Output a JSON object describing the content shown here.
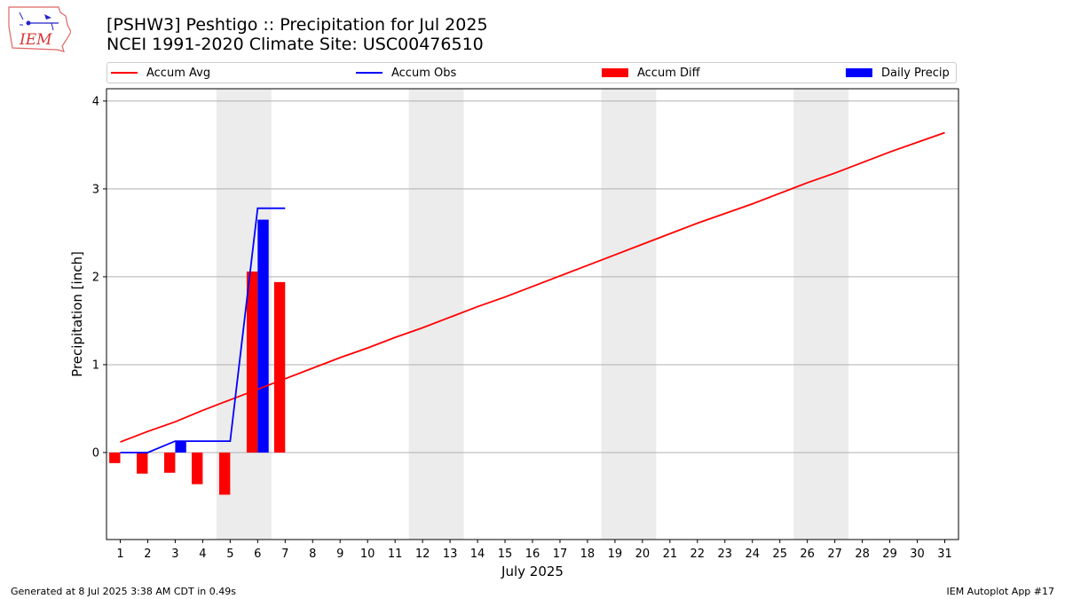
{
  "header": {
    "title_line1": "[PSHW3] Peshtigo :: Precipitation for Jul 2025",
    "title_line2": "NCEI 1991-2020 Climate Site: USC00476510",
    "logo_text": "IEM"
  },
  "legend": {
    "items": [
      {
        "label": "Accum Avg",
        "kind": "line",
        "color": "#ff0000"
      },
      {
        "label": "Accum Obs",
        "kind": "line",
        "color": "#0000ff"
      },
      {
        "label": "Accum Diff",
        "kind": "bar",
        "color": "#ff0000"
      },
      {
        "label": "Daily Precip",
        "kind": "bar",
        "color": "#0000ff"
      }
    ]
  },
  "footer": {
    "left": "Generated at 8 Jul 2025 3:38 AM CDT in 0.49s",
    "right": "IEM Autoplot App #17"
  },
  "chart_data": {
    "type": "bar",
    "title": "[PSHW3] Peshtigo :: Precipitation for Jul 2025",
    "xlabel": "July 2025",
    "ylabel": "Precipitation [inch]",
    "xlim": [
      0.5,
      31.5
    ],
    "ylim": [
      -0.99,
      4.14
    ],
    "x_ticks": [
      1,
      2,
      3,
      4,
      5,
      6,
      7,
      8,
      9,
      10,
      11,
      12,
      13,
      14,
      15,
      16,
      17,
      18,
      19,
      20,
      21,
      22,
      23,
      24,
      25,
      26,
      27,
      28,
      29,
      30,
      31
    ],
    "y_ticks": [
      0,
      1,
      2,
      3,
      4
    ],
    "grid": "horizontal",
    "weekend_shading": [
      [
        4.5,
        6.5
      ],
      [
        11.5,
        13.5
      ],
      [
        18.5,
        20.5
      ],
      [
        25.5,
        27.5
      ]
    ],
    "series": [
      {
        "name": "Accum Avg",
        "type": "line",
        "color": "#ff0000",
        "x": [
          1,
          2,
          3,
          4,
          5,
          6,
          7,
          8,
          9,
          10,
          11,
          12,
          13,
          14,
          15,
          16,
          17,
          18,
          19,
          20,
          21,
          22,
          23,
          24,
          25,
          26,
          27,
          28,
          29,
          30,
          31
        ],
        "values": [
          0.12,
          0.24,
          0.35,
          0.48,
          0.6,
          0.72,
          0.84,
          0.96,
          1.08,
          1.19,
          1.31,
          1.42,
          1.54,
          1.66,
          1.77,
          1.89,
          2.01,
          2.13,
          2.25,
          2.37,
          2.49,
          2.61,
          2.72,
          2.83,
          2.95,
          3.07,
          3.18,
          3.3,
          3.42,
          3.53,
          3.64
        ]
      },
      {
        "name": "Accum Obs",
        "type": "line",
        "color": "#0000ff",
        "x": [
          1,
          2,
          3,
          4,
          5,
          6,
          7
        ],
        "values": [
          0.0,
          0.0,
          0.13,
          0.13,
          0.13,
          2.78,
          2.78
        ]
      },
      {
        "name": "Accum Diff",
        "type": "bar",
        "color": "#ff0000",
        "x": [
          1,
          2,
          3,
          4,
          5,
          6,
          7
        ],
        "values": [
          -0.12,
          -0.24,
          -0.23,
          -0.36,
          -0.48,
          2.06,
          1.94
        ]
      },
      {
        "name": "Daily Precip",
        "type": "bar",
        "color": "#0000ff",
        "x": [
          1,
          2,
          3,
          4,
          5,
          6,
          7
        ],
        "values": [
          0.0,
          0.0,
          0.13,
          0.0,
          0.0,
          2.65,
          0.0
        ]
      }
    ]
  }
}
